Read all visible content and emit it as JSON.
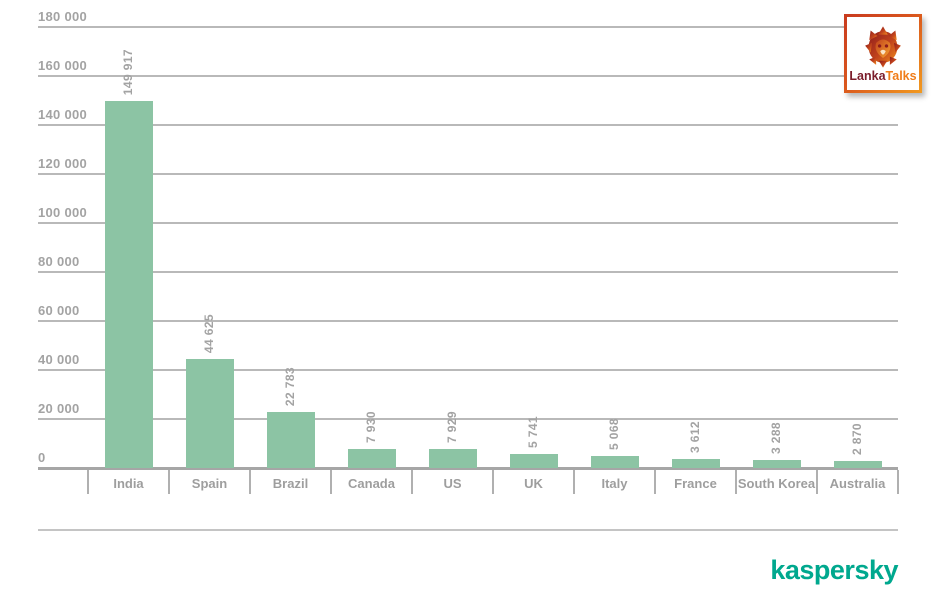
{
  "chart_data": {
    "type": "bar",
    "title": "",
    "xlabel": "",
    "ylabel": "",
    "categories": [
      "India",
      "Spain",
      "Brazil",
      "Canada",
      "US",
      "UK",
      "Italy",
      "France",
      "South Korea",
      "Australia"
    ],
    "values": [
      149917,
      44625,
      22783,
      7930,
      7929,
      5741,
      5068,
      3612,
      3288,
      2870
    ],
    "value_labels": [
      "149 917",
      "44 625",
      "22 783",
      "7 930",
      "7 929",
      "5 741",
      "5 068",
      "3 612",
      "3 288",
      "2 870"
    ],
    "ylim": [
      0,
      180000
    ],
    "ytick_step": 20000,
    "ytick_labels": [
      "0",
      "20 000",
      "40 000",
      "60 000",
      "80 000",
      "100 000",
      "120 000",
      "140 000",
      "160 000",
      "180 000"
    ],
    "grid": true,
    "legend": "none",
    "bar_color": "#8cc4a4",
    "value_label_orientation": "vertical"
  },
  "branding": {
    "kaspersky_wordmark": "kaspersky",
    "kaspersky_color": "#00A88E",
    "lankatalks": {
      "part1": "Lanka",
      "part2": "Talks",
      "part1_color": "#7B1D2B",
      "part2_color": "#F07D1A"
    }
  }
}
